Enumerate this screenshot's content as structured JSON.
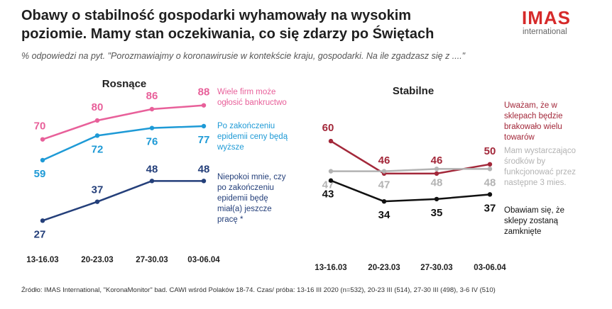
{
  "title": "Obawy o stabilność gospodarki wyhamowały na wysokim poziomie. Mamy stan oczekiwania, co się zdarzy po Świętach",
  "logo": {
    "main": "IMAS",
    "sub": "international"
  },
  "subtitle": "% odpowiedzi na pyt. \"Porozmawiajmy o koronawirusie w kontekście kraju, gospodarki. Na ile zgadzasz się z ....\"",
  "footer": "Źródło: IMAS International, \"KoronaMonitor\" bad. CAWI wśród Polaków 18-74. Czas/ próba: 13-16 III 2020 (n=532), 20-23 III (514), 27-30 III (498), 3-6 IV (510)",
  "chart_data": [
    {
      "type": "line",
      "title": "Rosnące",
      "categories": [
        "13-16.03",
        "20-23.03",
        "27-30.03",
        "03-06.04"
      ],
      "ylim": [
        20,
        95
      ],
      "series": [
        {
          "name": "Wiele firm może ogłosić bankructwo",
          "values": [
            70,
            80,
            86,
            88
          ],
          "color": "#e8609a",
          "label_pos": "above"
        },
        {
          "name": "Po zakończeniu epidemii ceny będą wyższe",
          "values": [
            59,
            72,
            76,
            77
          ],
          "color": "#1e9ad6",
          "label_pos": "below"
        },
        {
          "name": "Niepokoi mnie, czy po zakończeniu epidemii będę miał(a) jeszcze pracę *",
          "values": [
            27,
            37,
            48,
            48
          ],
          "color": "#243f7a",
          "label_pos": "auto"
        }
      ]
    },
    {
      "type": "line",
      "title": "Stabilne",
      "categories": [
        "13-16.03",
        "20-23.03",
        "27-30.03",
        "03-06.04"
      ],
      "ylim": [
        20,
        75
      ],
      "series": [
        {
          "name": "Uważam, że w sklepach będzie brakowało wielu towarów",
          "values": [
            60,
            46,
            46,
            50
          ],
          "color": "#a3283a",
          "label_pos": "above"
        },
        {
          "name": "Mam wystarczająco środków by funkcjonować przez następne 3 mies.",
          "values": [
            47,
            47,
            48,
            48
          ],
          "color": "#b3b3b3",
          "label_pos": "below"
        },
        {
          "name": "Obawiam się, że sklepy zostaną zamknięte",
          "values": [
            43,
            34,
            35,
            37
          ],
          "color": "#111111",
          "label_pos": "below"
        }
      ]
    }
  ]
}
